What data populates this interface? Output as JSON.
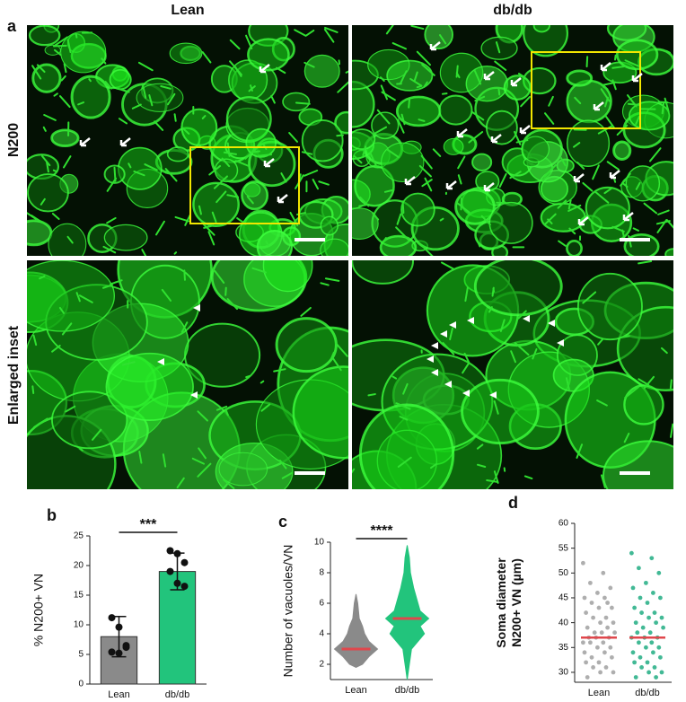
{
  "labels": {
    "a": "a",
    "columns": [
      "Lean",
      "db/db"
    ],
    "rows": [
      "N200",
      "Enlarged inset"
    ]
  },
  "chart_data": [
    {
      "type": "bar",
      "panel": "b",
      "y_label": [
        "% N200+ VN"
      ],
      "significance": "***",
      "categories": [
        "Lean",
        "db/db"
      ],
      "values": [
        8,
        19
      ],
      "errors": [
        3.4,
        3.1
      ],
      "colors": [
        "#8a8a8a",
        "#22c47c"
      ],
      "points": [
        [
          11.2,
          9.6,
          6.5,
          5.4,
          5.2,
          6.2
        ],
        [
          22.5,
          22,
          20.5,
          19,
          17,
          16.5
        ]
      ],
      "ylim": [
        0,
        25
      ],
      "yticks": [
        0,
        5,
        10,
        15,
        20,
        25
      ]
    },
    {
      "type": "violin",
      "panel": "c",
      "y_label": [
        "Number of vacuoles/VN"
      ],
      "significance": "****",
      "categories": [
        "Lean",
        "db/db"
      ],
      "colors": [
        "#8a8a8a",
        "#22c47c"
      ],
      "medians": [
        3,
        5
      ],
      "median_color": "#e0474c",
      "levels": [
        [
          1.8,
          2,
          2.5,
          3,
          3.5,
          4,
          4.5,
          5,
          6,
          6.6
        ],
        [
          1,
          2,
          3,
          4,
          4.5,
          5,
          5.5,
          6,
          7,
          8,
          9,
          9.8
        ]
      ],
      "widths": [
        [
          0,
          0.3,
          0.6,
          1,
          0.6,
          0.4,
          0.3,
          0.15,
          0.08,
          0
        ],
        [
          0,
          0.1,
          0.2,
          0.8,
          0.6,
          1,
          0.6,
          0.5,
          0.3,
          0.15,
          0.1,
          0
        ]
      ],
      "ylim": [
        1,
        10
      ],
      "yticks": [
        2,
        4,
        6,
        8,
        10
      ]
    },
    {
      "type": "scatter",
      "panel": "d",
      "y_label": [
        "Soma diameter",
        "N200+ VN (µm)"
      ],
      "categories": [
        "Lean",
        "db/db"
      ],
      "colors": [
        "#9a9a9a",
        "#13a87a"
      ],
      "medians": [
        37,
        37
      ],
      "median_color": "#e0474c",
      "points": [
        [
          52,
          50,
          48,
          47,
          46,
          45,
          45,
          44,
          43,
          43,
          42,
          41,
          41,
          40,
          40,
          39,
          39,
          38,
          38,
          38,
          37,
          37,
          37,
          36,
          36,
          36,
          35,
          35,
          34,
          34,
          33,
          33,
          32,
          32,
          31,
          31,
          30,
          30,
          29,
          44
        ],
        [
          54,
          53,
          51,
          50,
          48,
          47,
          46,
          45,
          45,
          44,
          43,
          42,
          42,
          41,
          41,
          40,
          40,
          39,
          39,
          38,
          38,
          37,
          37,
          37,
          36,
          36,
          35,
          35,
          34,
          34,
          33,
          33,
          32,
          32,
          31,
          31,
          30,
          30,
          29,
          29
        ]
      ],
      "ylim": [
        28,
        60
      ],
      "yticks": [
        30,
        35,
        40,
        45,
        50,
        55,
        60
      ]
    }
  ]
}
